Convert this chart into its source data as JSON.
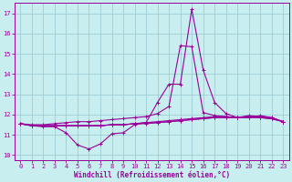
{
  "xlabel": "Windchill (Refroidissement éolien,°C)",
  "xlim": [
    -0.5,
    23.5
  ],
  "ylim": [
    9.75,
    17.5
  ],
  "yticks": [
    10,
    11,
    12,
    13,
    14,
    15,
    16,
    17
  ],
  "xticks": [
    0,
    1,
    2,
    3,
    4,
    5,
    6,
    7,
    8,
    9,
    10,
    11,
    12,
    13,
    14,
    15,
    16,
    17,
    18,
    19,
    20,
    21,
    22,
    23
  ],
  "bg_color": "#c8eef0",
  "grid_color": "#9ecdd4",
  "line_color": "#990099",
  "line1_y": [
    11.55,
    11.45,
    11.4,
    11.4,
    11.1,
    10.5,
    10.3,
    10.55,
    11.05,
    11.1,
    11.5,
    11.6,
    12.6,
    13.5,
    13.5,
    17.2,
    14.2,
    12.6,
    12.05,
    11.85,
    11.85,
    11.95,
    11.85,
    11.65
  ],
  "line2_y": [
    11.55,
    11.5,
    11.5,
    11.55,
    11.6,
    11.65,
    11.65,
    11.7,
    11.75,
    11.8,
    11.85,
    11.9,
    12.05,
    12.4,
    15.4,
    15.35,
    12.1,
    11.95,
    11.9,
    11.85,
    11.95,
    11.9,
    11.85,
    11.65
  ],
  "line3_y": [
    11.55,
    11.45,
    11.45,
    11.45,
    11.45,
    11.45,
    11.45,
    11.45,
    11.5,
    11.5,
    11.55,
    11.55,
    11.6,
    11.65,
    11.7,
    11.75,
    11.8,
    11.85,
    11.85,
    11.85,
    11.9,
    11.85,
    11.8,
    11.65
  ],
  "line4_y": [
    11.55,
    11.45,
    11.45,
    11.45,
    11.45,
    11.45,
    11.45,
    11.45,
    11.5,
    11.5,
    11.55,
    11.6,
    11.6,
    11.65,
    11.7,
    11.75,
    11.8,
    11.85,
    11.85,
    11.85,
    11.85,
    11.85,
    11.8,
    11.65
  ],
  "line5_y": [
    11.55,
    11.45,
    11.45,
    11.45,
    11.45,
    11.45,
    11.45,
    11.45,
    11.5,
    11.5,
    11.55,
    11.6,
    11.65,
    11.7,
    11.75,
    11.8,
    11.85,
    11.9,
    11.9,
    11.85,
    11.9,
    11.85,
    11.8,
    11.65
  ]
}
